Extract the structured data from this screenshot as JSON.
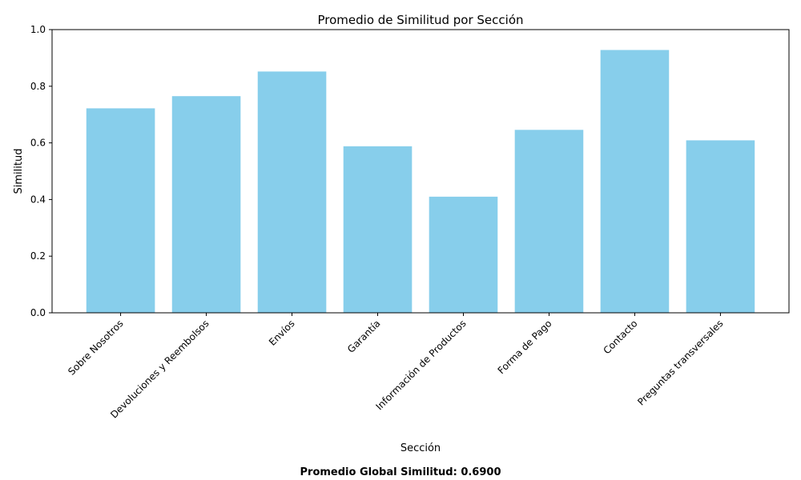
{
  "chart_data": {
    "type": "bar",
    "title": "Promedio de Similitud por Sección",
    "xlabel": "Sección",
    "ylabel": "Similitud",
    "categories": [
      "Sobre Nosotros",
      "Devoluciones y Reembolsos",
      "Envíos",
      "Garantía",
      "Información de Productos",
      "Forma de Pago",
      "Contacto",
      "Preguntas transversales"
    ],
    "values": [
      0.722,
      0.765,
      0.852,
      0.588,
      0.41,
      0.646,
      0.928,
      0.609
    ],
    "ylim": [
      0,
      1.0
    ],
    "yticks": [
      "0.0",
      "0.2",
      "0.4",
      "0.6",
      "0.8",
      "1.0"
    ],
    "bar_color": "#87ceeb",
    "grid": false,
    "legend": "none",
    "footer": "Promedio Global Similitud: 0.6900"
  }
}
